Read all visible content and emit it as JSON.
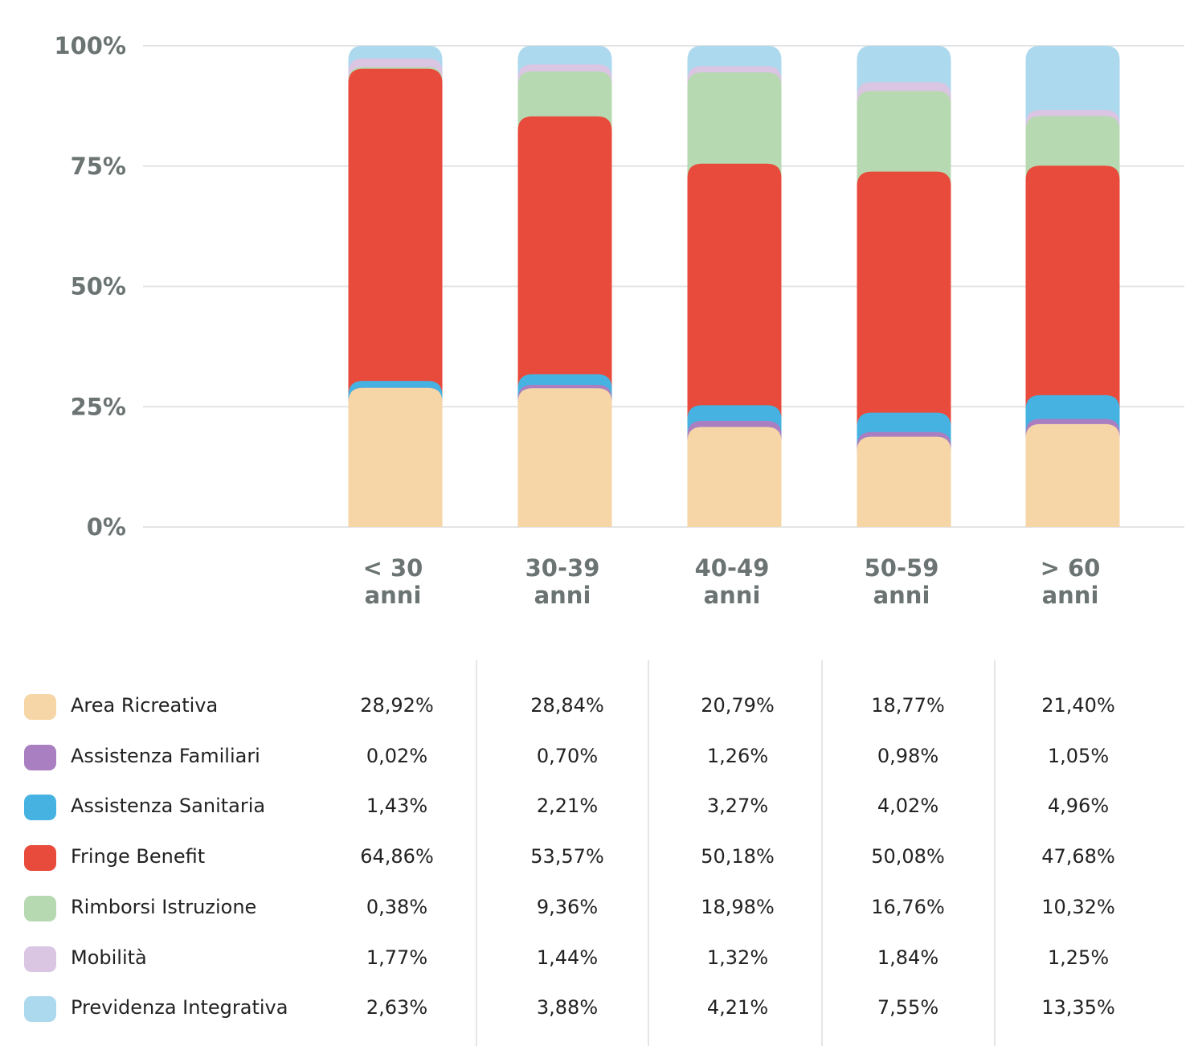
{
  "chart_data": {
    "type": "bar",
    "stacked": true,
    "title": "",
    "xlabel": "",
    "ylabel": "",
    "ylim": [
      0,
      100
    ],
    "y_ticks": [
      "0%",
      "25%",
      "50%",
      "75%",
      "100%"
    ],
    "y_tick_values": [
      0,
      25,
      50,
      75,
      100
    ],
    "grid": true,
    "legend_placement": "bottom-table",
    "categories": [
      {
        "line1": "< 30",
        "line2": "anni"
      },
      {
        "line1": "30-39",
        "line2": "anni"
      },
      {
        "line1": "40-49",
        "line2": "anni"
      },
      {
        "line1": "50-59",
        "line2": "anni"
      },
      {
        "line1": "> 60",
        "line2": "anni"
      }
    ],
    "series": [
      {
        "name": "Area Ricreativa",
        "color": "#f6d6a6",
        "values": [
          28.92,
          28.84,
          20.79,
          18.77,
          21.4
        ],
        "labels": [
          "28,92%",
          "28,84%",
          "20,79%",
          "18,77%",
          "21,40%"
        ]
      },
      {
        "name": "Assistenza Familiari",
        "color": "#a97fc1",
        "values": [
          0.02,
          0.7,
          1.26,
          0.98,
          1.05
        ],
        "labels": [
          "0,02%",
          "0,70%",
          "1,26%",
          "0,98%",
          "1,05%"
        ]
      },
      {
        "name": "Assistenza Sanitaria",
        "color": "#45b2e2",
        "values": [
          1.43,
          2.21,
          3.27,
          4.02,
          4.96
        ],
        "labels": [
          "1,43%",
          "2,21%",
          "3,27%",
          "4,02%",
          "4,96%"
        ]
      },
      {
        "name": "Fringe Benefit",
        "color": "#e84b3b",
        "values": [
          64.86,
          53.57,
          50.18,
          50.08,
          47.68
        ],
        "labels": [
          "64,86%",
          "53,57%",
          "50,18%",
          "50,08%",
          "47,68%"
        ]
      },
      {
        "name": "Rimborsi Istruzione",
        "color": "#b6d9b1",
        "values": [
          0.38,
          9.36,
          18.98,
          16.76,
          10.32
        ],
        "labels": [
          "0,38%",
          "9,36%",
          "18,98%",
          "16,76%",
          "10,32%"
        ]
      },
      {
        "name": "Mobilità",
        "color": "#dac5e3",
        "values": [
          1.77,
          1.44,
          1.32,
          1.84,
          1.25
        ],
        "labels": [
          "1,77%",
          "1,44%",
          "1,32%",
          "1,84%",
          "1,25%"
        ]
      },
      {
        "name": "Previdenza Integrativa",
        "color": "#acd9ee",
        "values": [
          2.63,
          3.88,
          4.21,
          7.55,
          13.35
        ],
        "labels": [
          "2,63%",
          "3,88%",
          "4,21%",
          "7,55%",
          "13,35%"
        ]
      }
    ]
  }
}
